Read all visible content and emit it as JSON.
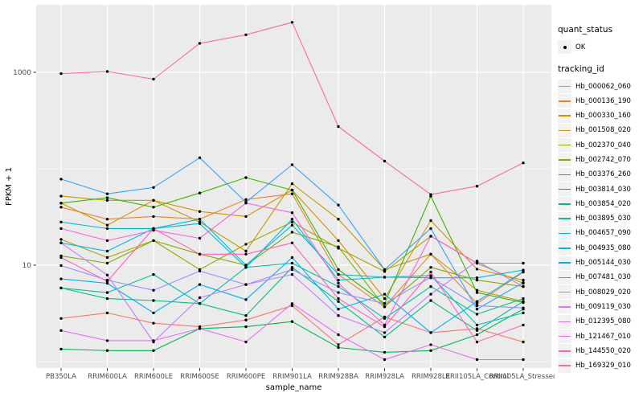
{
  "colors": {
    "panel_bg": "#EBEBEB",
    "grid": "#FFFFFF",
    "tick_text": "#4D4D4D",
    "axis_title": "#000000",
    "point": "#000000",
    "legend_key_bg": "#F2F2F2"
  },
  "legend": {
    "quant_status": {
      "title": "quant_status",
      "items": [
        {
          "label": "OK",
          "marker": "point-icon"
        }
      ]
    },
    "tracking_id": {
      "title": "tracking_id"
    }
  },
  "chart_data": {
    "type": "line",
    "title": "",
    "xlabel": "sample_name",
    "ylabel": "FPKM + 1",
    "y_scale": "log10",
    "y_tick_labels": [
      "1000",
      "10"
    ],
    "y_tick_values": [
      1000,
      10
    ],
    "y_minor_gridlines": [
      100,
      1
    ],
    "ylim": [
      0.86,
      5000
    ],
    "grid": true,
    "legend_position": "right",
    "marker": "black point (quant_status OK)",
    "categories": [
      "PB350LA",
      "RRIM600LA",
      "RRIM600LE",
      "RRIM600SE",
      "RRIM600PE",
      "RRIM901LA",
      "RRIM928BA",
      "RRIM928LA",
      "RRIM928LE",
      "RRII105LA_Control",
      "RRII105LA_Stressed"
    ],
    "series": [
      {
        "name": "Hb_000062_060",
        "color": "#F8766D",
        "values": [
          2.8,
          3.2,
          2.5,
          2.3,
          2.7,
          3.8,
          1.5,
          2.9,
          2.0,
          2.2,
          1.6
        ]
      },
      {
        "name": "Hb_000136_190",
        "color": "#EA8331",
        "values": [
          40,
          30,
          32,
          30,
          48,
          55,
          8.0,
          3.7,
          13,
          4.0,
          8.5
        ]
      },
      {
        "name": "Hb_000330_160",
        "color": "#D89000",
        "values": [
          44,
          26,
          47,
          36,
          32,
          60,
          18,
          4.5,
          29,
          9.1,
          7.0
        ]
      },
      {
        "name": "Hb_001508_020",
        "color": "#C09B00",
        "values": [
          52,
          47,
          47,
          28,
          14,
          70,
          30,
          9.0,
          13,
          5.5,
          4.2
        ]
      },
      {
        "name": "Hb_002370_040",
        "color": "#A3A500",
        "values": [
          18.5,
          12,
          18,
          9.0,
          16.5,
          28,
          15,
          8.6,
          20,
          10.5,
          6.5
        ]
      },
      {
        "name": "Hb_002742_070",
        "color": "#7CAE00",
        "values": [
          12.5,
          10.5,
          18,
          13,
          10,
          22,
          15.5,
          3.7,
          9.5,
          7.0,
          6.0
        ]
      },
      {
        "name": "Hb_003376_260",
        "color": "#39B600",
        "values": [
          44,
          50,
          40,
          56,
          81,
          60,
          9.0,
          4.0,
          52,
          5.2,
          4.1
        ]
      },
      {
        "name": "Hb_003814_030",
        "color": "#00BB4E",
        "values": [
          1.35,
          1.3,
          1.3,
          2.2,
          2.3,
          2.6,
          1.4,
          1.25,
          1.3,
          1.9,
          3.5
        ]
      },
      {
        "name": "Hb_003854_020",
        "color": "#00BF7D",
        "values": [
          5.8,
          4.5,
          4.3,
          4.0,
          3.0,
          9.5,
          4.2,
          1.8,
          4.3,
          2.1,
          4.2
        ]
      },
      {
        "name": "Hb_003895_030",
        "color": "#00C1A3",
        "values": [
          5.8,
          5.2,
          8.0,
          4.0,
          9.5,
          10.5,
          6.0,
          2.8,
          6.0,
          3.1,
          4.5
        ]
      },
      {
        "name": "Hb_004657_090",
        "color": "#00BFC4",
        "values": [
          28,
          24,
          24,
          27,
          9.5,
          30,
          7.0,
          7.5,
          7.8,
          2.4,
          3.2
        ]
      },
      {
        "name": "Hb_004935_080",
        "color": "#00BAE0",
        "values": [
          17,
          14,
          24,
          30,
          10,
          26,
          8.0,
          7.5,
          7.4,
          7.4,
          8.9
        ]
      },
      {
        "name": "Hb_005144_030",
        "color": "#00B0F6",
        "values": [
          7.2,
          6.5,
          3.2,
          6.3,
          4.4,
          12,
          3.5,
          5.0,
          2.0,
          4.2,
          8.6
        ]
      },
      {
        "name": "Hb_007481_030",
        "color": "#35A2FF",
        "values": [
          78,
          55,
          64,
          130,
          45,
          110,
          42,
          9.0,
          24,
          3.5,
          6.6
        ]
      },
      {
        "name": "Hb_008029_020",
        "color": "#9590FF",
        "values": [
          9.9,
          7.0,
          5.5,
          8.7,
          6.3,
          9.0,
          5.2,
          4.0,
          7.5,
          3.8,
          3.6
        ]
      },
      {
        "name": "Hb_009119_030",
        "color": "#C77CFF",
        "values": [
          17,
          7.9,
          1.6,
          4.6,
          6.3,
          8.0,
          3.0,
          2.0,
          5.0,
          11,
          6.0
        ]
      },
      {
        "name": "Hb_012395_080",
        "color": "#E76BF3",
        "values": [
          2.1,
          1.65,
          1.65,
          2.2,
          1.6,
          4.0,
          1.9,
          1.05,
          1.5,
          1.05,
          1.05
        ]
      },
      {
        "name": "Hb_121467_010",
        "color": "#FA62DB",
        "values": [
          24,
          18,
          23,
          19,
          44,
          35,
          6.5,
          2.4,
          20,
          10.5,
          10.5
        ]
      },
      {
        "name": "Hb_144550_020",
        "color": "#FF62BC",
        "values": [
          12,
          6.8,
          24,
          13,
          13,
          17,
          4.5,
          2.3,
          8.5,
          1.6,
          2.4
        ]
      },
      {
        "name": "Hb_169329_010",
        "color": "#FF6A98",
        "values": [
          970,
          1020,
          850,
          2000,
          2450,
          3300,
          274,
          120,
          54,
          66,
          115
        ]
      }
    ]
  }
}
